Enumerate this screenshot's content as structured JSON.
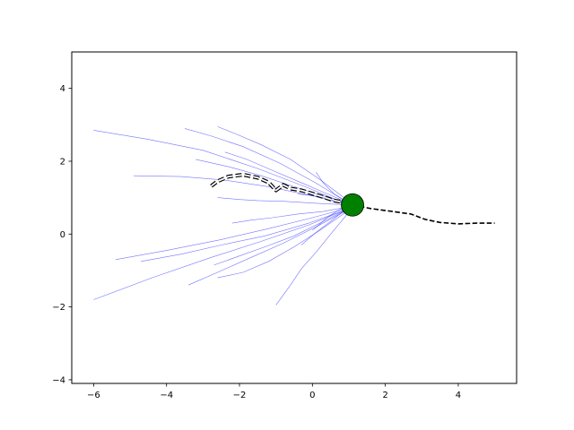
{
  "chart_data": {
    "type": "line",
    "title": "",
    "xlabel": "",
    "ylabel": "",
    "xlim": [
      -6.6,
      5.6
    ],
    "ylim": [
      -4.1,
      5.0
    ],
    "xticks": [
      -6,
      -4,
      -2,
      0,
      2,
      4
    ],
    "yticks": [
      -4,
      -2,
      0,
      2,
      4
    ],
    "xtick_labels": [
      "−6",
      "−4",
      "−2",
      "0",
      "2",
      "4"
    ],
    "ytick_labels": [
      "−4",
      "−2",
      "0",
      "2",
      "4"
    ],
    "grid": false,
    "legend": "none",
    "colors": {
      "samples": "#0000ff",
      "path": "#000000",
      "ghost_outline": "#000000",
      "ghost_fill": "#ffffff",
      "agent": "#008000",
      "agent_edge": "#000000"
    },
    "agent": {
      "x": 1.1,
      "y": 0.8
    },
    "series": [
      {
        "role": "path",
        "x": [
          1.1,
          1.6,
          2.2,
          2.7,
          3.1,
          3.5,
          4.0,
          4.5,
          5.0
        ],
        "y": [
          0.8,
          0.7,
          0.62,
          0.55,
          0.4,
          0.32,
          0.28,
          0.3,
          0.3
        ]
      },
      {
        "role": "ghost-path",
        "x": [
          1.0,
          0.6,
          0.2,
          -0.3,
          -0.6,
          -0.8,
          -1.0,
          -1.2,
          -1.5,
          -1.9,
          -2.3,
          -2.6,
          -2.8
        ],
        "y": [
          0.85,
          0.92,
          1.05,
          1.2,
          1.25,
          1.35,
          1.2,
          1.42,
          1.55,
          1.63,
          1.58,
          1.45,
          1.3
        ]
      },
      {
        "role": "sample",
        "x": [
          1.0,
          -0.2,
          -1.5,
          -3.0,
          -4.5,
          -6.0
        ],
        "y": [
          0.8,
          1.3,
          1.8,
          2.3,
          2.6,
          2.85
        ]
      },
      {
        "role": "sample",
        "x": [
          1.0,
          0.1,
          -0.9,
          -1.9,
          -2.8,
          -3.5
        ],
        "y": [
          0.85,
          1.4,
          1.95,
          2.4,
          2.7,
          2.9
        ]
      },
      {
        "role": "sample",
        "x": [
          1.0,
          0.2,
          -0.6,
          -1.4,
          -2.1,
          -2.6
        ],
        "y": [
          0.9,
          1.5,
          2.05,
          2.45,
          2.75,
          2.95
        ]
      },
      {
        "role": "sample",
        "x": [
          1.0,
          0.3,
          -0.4,
          -1.1,
          -1.8,
          -2.4
        ],
        "y": [
          0.85,
          1.15,
          1.45,
          1.75,
          2.05,
          2.25
        ]
      },
      {
        "role": "sample",
        "x": [
          1.0,
          0.3,
          -0.5,
          -1.4,
          -2.3,
          -3.2
        ],
        "y": [
          0.85,
          1.05,
          1.3,
          1.6,
          1.85,
          2.05
        ]
      },
      {
        "role": "sample",
        "x": [
          1.0,
          0.0,
          -1.2,
          -2.4,
          -3.6,
          -4.9
        ],
        "y": [
          0.8,
          1.05,
          1.3,
          1.48,
          1.58,
          1.6
        ]
      },
      {
        "role": "sample",
        "x": [
          1.0,
          0.0,
          -0.8,
          -1.5,
          -2.0,
          -2.6
        ],
        "y": [
          0.8,
          0.85,
          0.9,
          0.92,
          0.95,
          1.0
        ]
      },
      {
        "role": "sample",
        "x": [
          1.0,
          0.3,
          -0.4,
          -1.1,
          -1.7,
          -2.2
        ],
        "y": [
          0.75,
          0.62,
          0.55,
          0.45,
          0.38,
          0.3
        ]
      },
      {
        "role": "sample",
        "x": [
          1.0,
          0.2,
          -0.5,
          -1.3,
          -2.0,
          -2.7
        ],
        "y": [
          0.7,
          0.3,
          -0.05,
          -0.35,
          -0.6,
          -0.85
        ]
      },
      {
        "role": "sample",
        "x": [
          1.0,
          -0.1,
          -1.3,
          -2.5,
          -3.6,
          -4.7
        ],
        "y": [
          0.7,
          0.3,
          -0.05,
          -0.3,
          -0.55,
          -0.75
        ]
      },
      {
        "role": "sample",
        "x": [
          1.0,
          0.0,
          -1.2,
          -2.5,
          -4.0,
          -5.4
        ],
        "y": [
          0.72,
          0.45,
          0.15,
          -0.15,
          -0.45,
          -0.7
        ]
      },
      {
        "role": "sample",
        "x": [
          1.0,
          -0.1,
          -1.4,
          -2.8,
          -4.4,
          -6.0
        ],
        "y": [
          0.7,
          0.25,
          -0.2,
          -0.65,
          -1.2,
          -1.8
        ]
      },
      {
        "role": "sample",
        "x": [
          1.0,
          0.1,
          -0.8,
          -1.7,
          -2.6,
          -3.4
        ],
        "y": [
          0.68,
          0.2,
          -0.25,
          -0.65,
          -1.05,
          -1.4
        ]
      },
      {
        "role": "sample",
        "x": [
          1.0,
          0.2,
          -0.5,
          -1.2,
          -1.9,
          -2.6
        ],
        "y": [
          0.66,
          0.1,
          -0.35,
          -0.75,
          -1.05,
          -1.2
        ]
      },
      {
        "role": "sample",
        "x": [
          1.0,
          0.5,
          0.1,
          -0.3,
          -0.6,
          -1.0
        ],
        "y": [
          0.6,
          0.0,
          -0.5,
          -0.95,
          -1.4,
          -1.95
        ]
      },
      {
        "role": "sample",
        "x": [
          1.0,
          0.5,
          0.1,
          -0.3
        ],
        "y": [
          0.75,
          0.35,
          0.05,
          -0.3
        ]
      },
      {
        "role": "sample",
        "x": [
          1.0,
          0.5,
          0.05,
          -0.4
        ],
        "y": [
          0.82,
          0.95,
          1.05,
          1.1
        ]
      },
      {
        "role": "sample",
        "x": [
          1.0,
          0.6,
          0.3,
          0.1
        ],
        "y": [
          0.85,
          1.1,
          1.4,
          1.7
        ]
      },
      {
        "role": "sample",
        "x": [
          1.0,
          0.7,
          0.4,
          0.0
        ],
        "y": [
          0.8,
          0.65,
          0.45,
          0.1
        ]
      }
    ]
  }
}
